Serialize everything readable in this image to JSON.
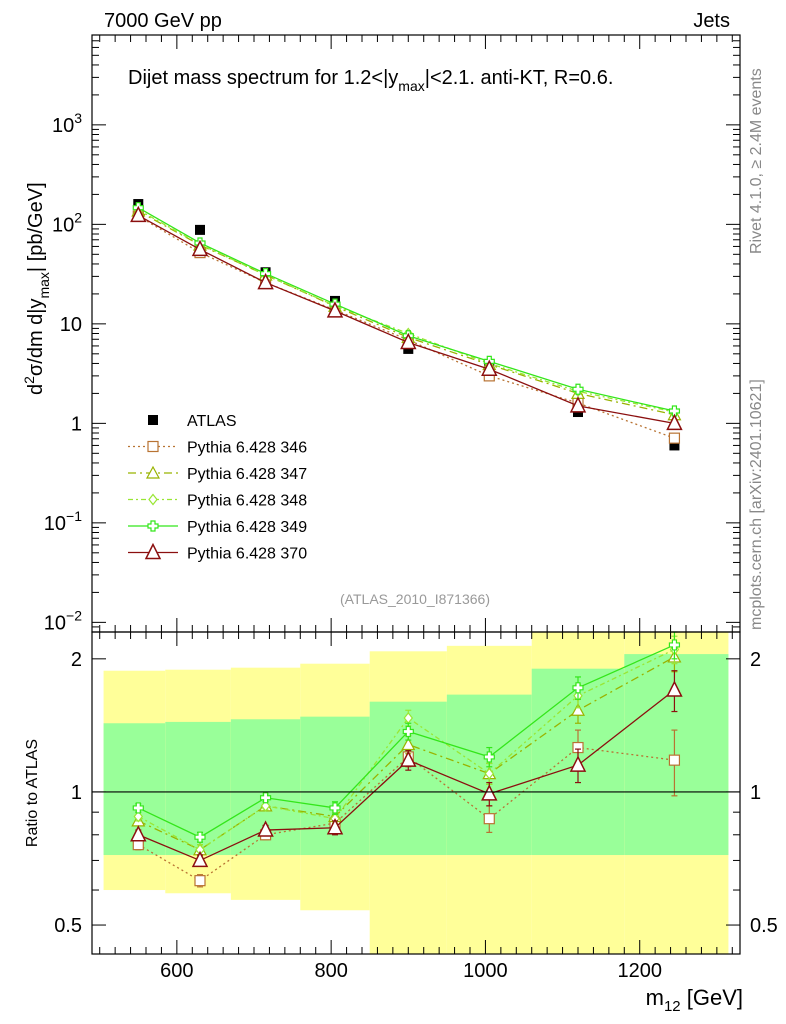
{
  "header": {
    "energy_label": "7000 GeV pp",
    "process_label": "Jets"
  },
  "side_labels": {
    "rivet": "Rivet 4.1.0, ≥ 2.4M events",
    "mcplots": "mcplots.cern.ch [arXiv:2401.10621]"
  },
  "analysis_id": "(ATLAS_2010_I871366)",
  "colors": {
    "atlas": "#000000",
    "p346": "#b87333",
    "p347": "#99b300",
    "p348": "#99e633",
    "p349": "#33e61a",
    "p370": "#8b0f0f",
    "band_yellow": "#ffff99",
    "band_green": "#99ff99"
  },
  "chart_data": [
    {
      "type": "scatter",
      "panel": "main",
      "title": "Dijet mass spectrum for 1.2<|y_max|<2.1.  anti-KT, R=0.6.",
      "title_parts": {
        "t1": "Dijet mass spectrum for 1.2<|y",
        "sub": "max",
        "t2": "|<2.1.  anti-KT, R=0.6."
      },
      "ylabel": "d²σ/dm d|y_max| [pb/GeV]",
      "ylabel_parts": {
        "p1": "d",
        "sup": "2",
        "p2": "σ/dm d|y",
        "sub": "max",
        "p3": "| [pb/GeV]"
      },
      "yscale": "log",
      "xlim": [
        490,
        1330
      ],
      "ylim": [
        0.008,
        8000
      ],
      "ytick_labels": [
        "10⁻²",
        "10⁻¹",
        "1",
        "10",
        "10²",
        "10³"
      ],
      "ytick_parts": [
        {
          "b": "10",
          "e": "−2"
        },
        {
          "b": "10",
          "e": "−1"
        },
        {
          "b": "1",
          "e": ""
        },
        {
          "b": "10",
          "e": ""
        },
        {
          "b": "10",
          "e": "2"
        },
        {
          "b": "10",
          "e": "3"
        }
      ],
      "x": [
        550,
        630,
        715,
        805,
        900,
        1005,
        1120,
        1245
      ],
      "series": [
        {
          "name": "ATLAS",
          "values": [
            160,
            88,
            33,
            17,
            5.6,
            3.6,
            1.3,
            0.6
          ]
        },
        {
          "name": "Pythia 6.428 346",
          "values": [
            121,
            52,
            26,
            13.8,
            6.9,
            3.0,
            1.6,
            0.71
          ]
        },
        {
          "name": "Pythia 6.428 347",
          "values": [
            136,
            62,
            31,
            15.0,
            7.3,
            3.9,
            2.0,
            1.22
          ]
        },
        {
          "name": "Pythia 6.428 348",
          "values": [
            140,
            63,
            31,
            15.2,
            8.0,
            4.0,
            2.1,
            1.3
          ]
        },
        {
          "name": "Pythia 6.428 349",
          "values": [
            147,
            65,
            32,
            15.8,
            7.6,
            4.2,
            2.2,
            1.33
          ]
        },
        {
          "name": "Pythia 6.428 370",
          "values": [
            123,
            56,
            26,
            13.5,
            6.5,
            3.5,
            1.5,
            1.0
          ]
        }
      ],
      "legend": [
        "ATLAS",
        "Pythia 6.428 346",
        "Pythia 6.428 347",
        "Pythia 6.428 348",
        "Pythia 6.428 349",
        "Pythia 6.428 370"
      ],
      "legend_position": "bottom-left"
    },
    {
      "type": "scatter",
      "panel": "ratio",
      "ylabel": "Ratio to ATLAS",
      "xlabel": "m12 [GeV]",
      "xlabel_parts": {
        "base": "m",
        "sub": "12",
        "unit": " [GeV]"
      },
      "yscale": "log",
      "xlim": [
        490,
        1330
      ],
      "ylim": [
        0.43,
        2.3
      ],
      "xtick_labels": [
        "600",
        "800",
        "1000",
        "1200"
      ],
      "xtick_values": [
        600,
        800,
        1000,
        1200
      ],
      "ytick_labels": [
        "0.5",
        "1",
        "2"
      ],
      "ytick_values": [
        0.5,
        1,
        2
      ],
      "reference_line": 1,
      "bins": [
        [
          505,
          585
        ],
        [
          585,
          670
        ],
        [
          670,
          760
        ],
        [
          760,
          850
        ],
        [
          850,
          950
        ],
        [
          950,
          1060
        ],
        [
          1060,
          1180
        ],
        [
          1180,
          1315
        ]
      ],
      "band_yellow": [
        [
          0.6,
          1.88
        ],
        [
          0.59,
          1.89
        ],
        [
          0.57,
          1.91
        ],
        [
          0.54,
          1.95
        ],
        [
          0.385,
          2.08
        ],
        [
          0.355,
          2.14
        ],
        [
          0.33,
          2.35
        ],
        [
          0.33,
          2.35
        ]
      ],
      "band_green": [
        [
          0.72,
          1.43
        ],
        [
          0.72,
          1.44
        ],
        [
          0.72,
          1.46
        ],
        [
          0.72,
          1.48
        ],
        [
          0.72,
          1.6
        ],
        [
          0.72,
          1.66
        ],
        [
          0.72,
          1.9
        ],
        [
          0.72,
          2.05
        ]
      ],
      "x": [
        550,
        630,
        715,
        805,
        900,
        1005,
        1120,
        1245
      ],
      "series": [
        {
          "name": "Pythia 6.428 346",
          "values": [
            0.76,
            0.63,
            0.8,
            0.85,
            1.2,
            0.87,
            1.26,
            1.18
          ],
          "errors": [
            0.02,
            0.02,
            0.02,
            0.03,
            0.06,
            0.06,
            0.12,
            0.2
          ]
        },
        {
          "name": "Pythia 6.428 347",
          "values": [
            0.86,
            0.74,
            0.93,
            0.88,
            1.28,
            1.1,
            1.53,
            2.02
          ],
          "errors": [
            0.02,
            0.02,
            0.02,
            0.03,
            0.06,
            0.06,
            0.1,
            0.15
          ]
        },
        {
          "name": "Pythia 6.428 348",
          "values": [
            0.88,
            0.74,
            0.93,
            0.87,
            1.47,
            1.1,
            1.65,
            2.1
          ],
          "errors": [
            0.02,
            0.02,
            0.02,
            0.03,
            0.06,
            0.06,
            0.1,
            0.15
          ]
        },
        {
          "name": "Pythia 6.428 349",
          "values": [
            0.92,
            0.79,
            0.97,
            0.92,
            1.37,
            1.2,
            1.72,
            2.15
          ],
          "errors": [
            0.02,
            0.02,
            0.02,
            0.03,
            0.06,
            0.06,
            0.1,
            0.15
          ]
        },
        {
          "name": "Pythia 6.428 370",
          "values": [
            0.8,
            0.7,
            0.82,
            0.83,
            1.18,
            0.99,
            1.15,
            1.7
          ],
          "errors": [
            0.02,
            0.02,
            0.02,
            0.03,
            0.06,
            0.06,
            0.1,
            0.18
          ]
        }
      ]
    }
  ]
}
